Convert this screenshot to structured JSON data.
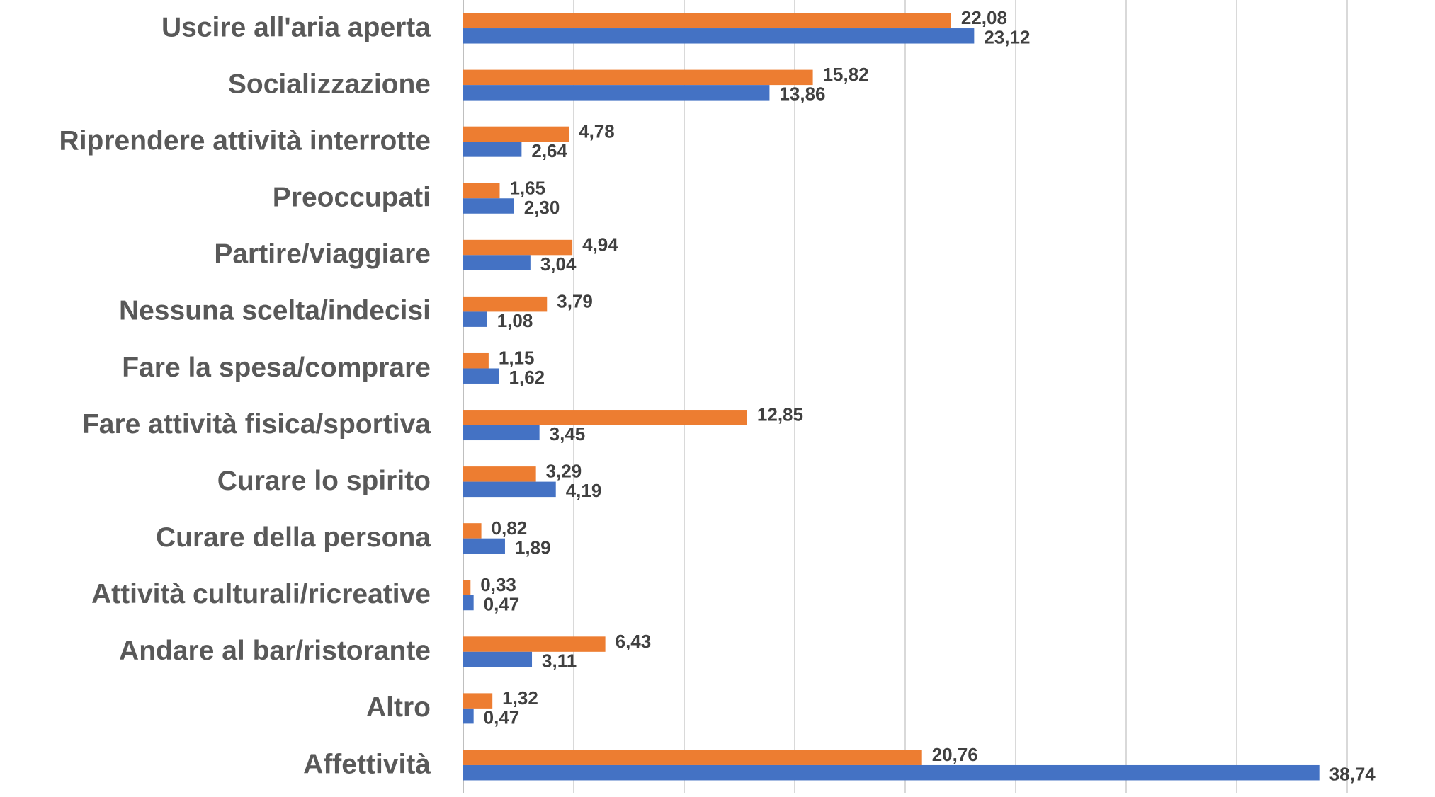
{
  "chart_data": {
    "type": "bar",
    "orientation": "horizontal",
    "categories": [
      "Uscire all'aria aperta",
      "Socializzazione",
      "Riprendere attività interrotte",
      "Preoccupati",
      "Partire/viaggiare",
      "Nessuna scelta/indecisi",
      "Fare la spesa/comprare",
      "Fare attività fisica/sportiva",
      "Curare lo spirito",
      "Curare della persona",
      "Attività culturali/ricreative",
      "Andare al bar/ristorante",
      "Altro",
      "Affettività"
    ],
    "series": [
      {
        "color": "#ed7d31",
        "values": [
          22.08,
          15.82,
          4.78,
          1.65,
          4.94,
          3.79,
          1.15,
          12.85,
          3.29,
          0.82,
          0.33,
          6.43,
          1.32,
          20.76
        ],
        "value_labels": [
          "22,08",
          "15,82",
          "4,78",
          "1,65",
          "4,94",
          "3,79",
          "1,15",
          "12,85",
          "3,29",
          "0,82",
          "0,33",
          "6,43",
          "1,32",
          "20,76"
        ]
      },
      {
        "color": "#4472c4",
        "values": [
          23.12,
          13.86,
          2.64,
          2.3,
          3.04,
          1.08,
          1.62,
          3.45,
          4.19,
          1.89,
          0.47,
          3.11,
          0.47,
          38.74
        ],
        "value_labels": [
          "23,12",
          "13,86",
          "2,64",
          "2,30",
          "3,04",
          "1,08",
          "1,62",
          "3,45",
          "4,19",
          "1,89",
          "0,47",
          "3,11",
          "0,47",
          "38,74"
        ]
      }
    ],
    "xlim": [
      0,
      40
    ],
    "xticks": [
      0,
      5,
      10,
      15,
      20,
      25,
      30,
      35,
      40
    ],
    "grid": true
  }
}
